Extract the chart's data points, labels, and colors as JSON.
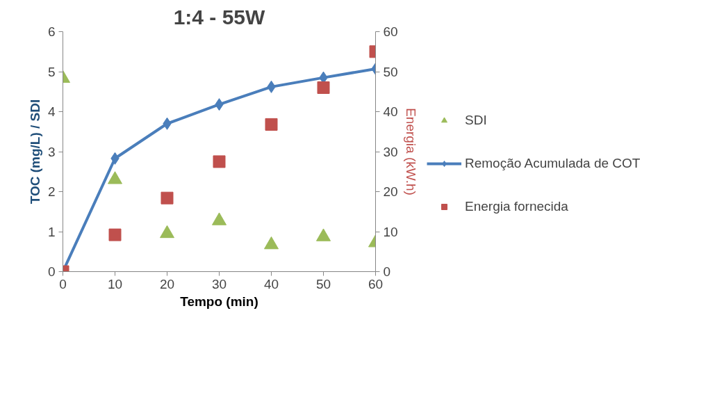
{
  "chart_data": {
    "type": "scatter",
    "title": "1:4 - 55W",
    "xlabel": "Tempo (min)",
    "ylabel": "TOC (mg/L) / SDI",
    "y2label": "Energia (kW.h)",
    "x": [
      0,
      10,
      20,
      30,
      40,
      50,
      60
    ],
    "series": [
      {
        "name": "SDI",
        "marker": "triangle",
        "color": "#9bbb59",
        "values": [
          4.83,
          2.3,
          0.95,
          1.27,
          0.67,
          0.87,
          0.72
        ]
      },
      {
        "name": "Remoção Acumulada de COT",
        "type": "line",
        "marker": "diamond",
        "color": "#4a7ebb",
        "values": [
          0,
          2.83,
          3.7,
          4.18,
          4.62,
          4.85,
          5.07
        ]
      },
      {
        "name": "Energia fornecida",
        "marker": "square",
        "color": "#c0504d",
        "axis": "y2",
        "values": [
          0,
          9.2,
          18.4,
          27.5,
          36.8,
          46,
          55
        ]
      }
    ],
    "xlim": [
      0,
      60
    ],
    "xticks": [
      0,
      10,
      20,
      30,
      40,
      50,
      60
    ],
    "ylim": [
      0,
      6
    ],
    "yticks": [
      0,
      1,
      2,
      3,
      4,
      5,
      6
    ],
    "y2lim": [
      0,
      60
    ],
    "y2ticks": [
      0,
      10,
      20,
      30,
      40,
      50,
      60
    ],
    "grid": false,
    "legend": "right"
  }
}
